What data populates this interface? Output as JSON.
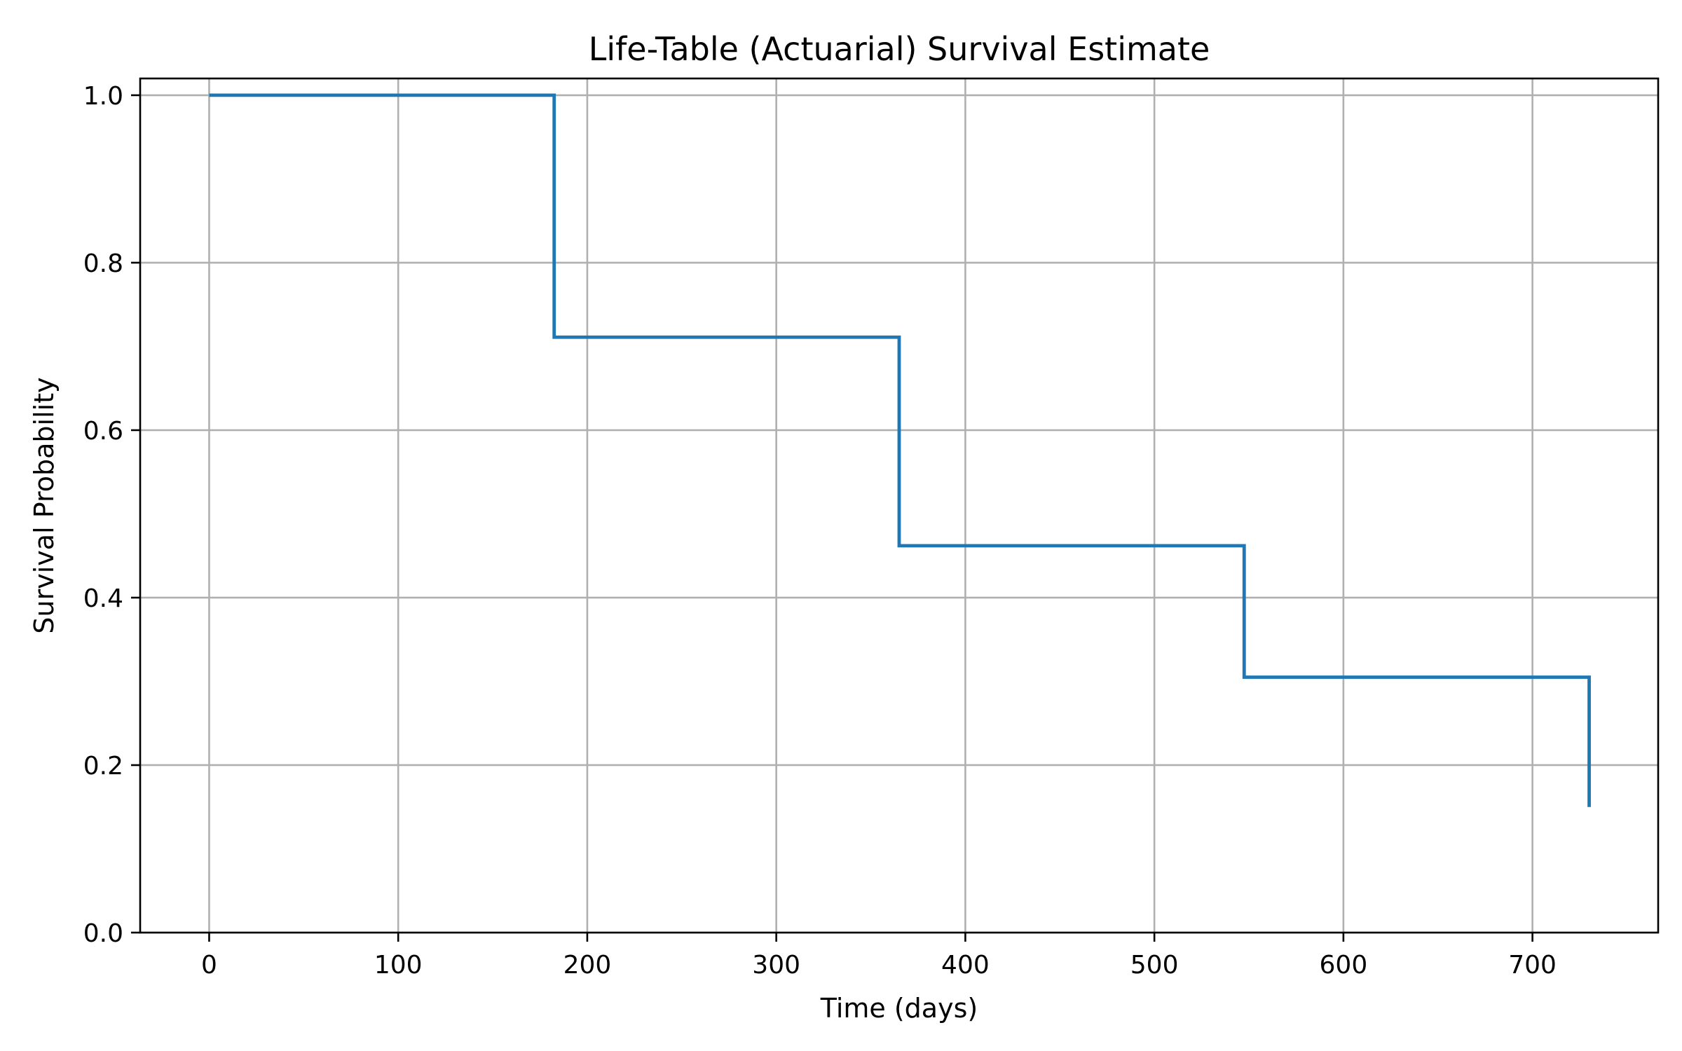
{
  "chart_data": {
    "type": "line",
    "drawstyle": "step",
    "title": "Life-Table (Actuarial) Survival Estimate",
    "xlabel": "Time (days)",
    "ylabel": "Survival Probability",
    "xlim": [
      -36.5,
      766.5
    ],
    "ylim": [
      0.0,
      1.02
    ],
    "xticks": [
      0,
      100,
      200,
      300,
      400,
      500,
      600,
      700
    ],
    "xtick_labels": [
      "0",
      "100",
      "200",
      "300",
      "400",
      "500",
      "600",
      "700"
    ],
    "yticks": [
      0.0,
      0.2,
      0.4,
      0.6,
      0.8,
      1.0
    ],
    "ytick_labels": [
      "0.0",
      "0.2",
      "0.4",
      "0.6",
      "0.8",
      "1.0"
    ],
    "grid": true,
    "legend": false,
    "series": [
      {
        "color": "#1f77b4",
        "x": [
          0,
          182.5,
          365,
          547.5,
          730
        ],
        "y": [
          1.0,
          0.711,
          0.462,
          0.305,
          0.15
        ]
      }
    ]
  }
}
